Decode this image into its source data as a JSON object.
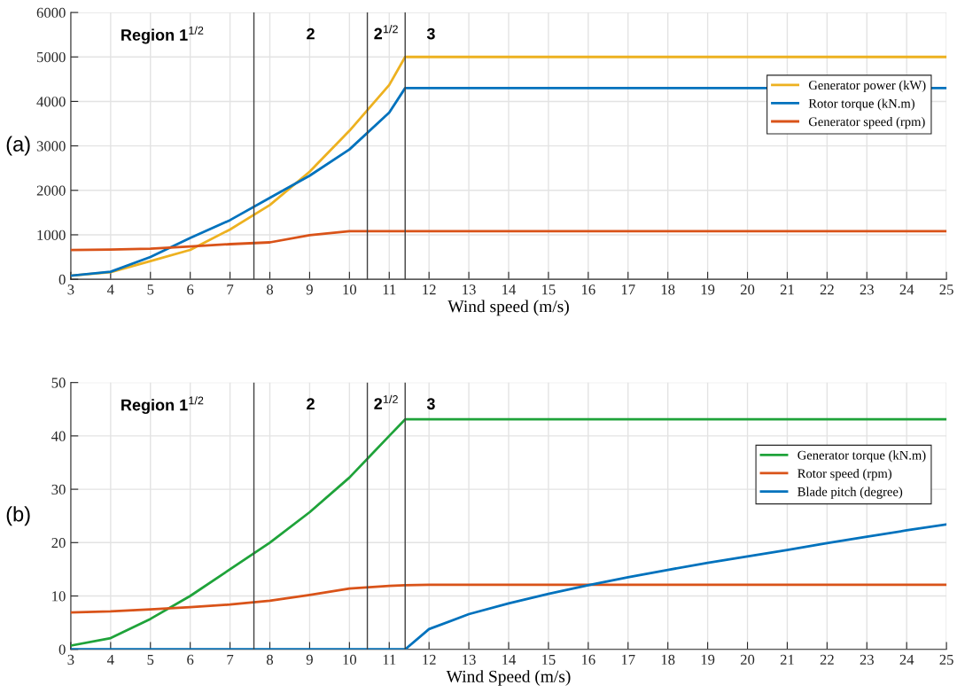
{
  "chart_data": [
    {
      "type": "line",
      "xlabel": "Wind speed (m/s)",
      "xlim": [
        3,
        25
      ],
      "xticks": [
        3,
        4,
        5,
        6,
        7,
        8,
        9,
        10,
        11,
        12,
        13,
        14,
        15,
        16,
        17,
        18,
        19,
        20,
        21,
        22,
        23,
        24,
        25
      ],
      "ylim": [
        0,
        6000
      ],
      "yticks": [
        0,
        1000,
        2000,
        3000,
        4000,
        5000,
        6000
      ],
      "grid": true,
      "legend": "right",
      "line_style": "solid",
      "series": [
        {
          "name": "Generator power (kW)",
          "color": "#edb120",
          "x": [
            3,
            4,
            5,
            6,
            7,
            8,
            9,
            10,
            11,
            11.4,
            25
          ],
          "values": [
            80,
            160,
            410,
            660,
            1120,
            1670,
            2420,
            3340,
            4370,
            5000,
            5000
          ]
        },
        {
          "name": "Rotor torque (kN.m)",
          "color": "#0072bd",
          "x": [
            3,
            4,
            5,
            6,
            7,
            8,
            9,
            10,
            11,
            11.4,
            25
          ],
          "values": [
            80,
            170,
            500,
            930,
            1330,
            1830,
            2330,
            2920,
            3750,
            4300,
            4300
          ]
        },
        {
          "name": "Generator speed (rpm)",
          "color": "#d95319",
          "x": [
            3,
            4,
            5,
            6,
            7,
            8,
            9,
            10,
            11,
            11.4,
            25
          ],
          "values": [
            660,
            670,
            690,
            740,
            790,
            830,
            990,
            1080,
            1080,
            1080,
            1080
          ]
        }
      ],
      "ref_lines": [
        {
          "axis": "x",
          "value": 7.6,
          "color": "#404040"
        },
        {
          "axis": "x",
          "value": 10.45,
          "color": "#404040"
        },
        {
          "axis": "x",
          "value": 11.4,
          "color": "#404040"
        }
      ],
      "annotations": [
        "(a)",
        "Region 1$^{1/2}$",
        "2",
        "2$^{1/2}$",
        "3"
      ]
    },
    {
      "type": "line",
      "xlabel": "Wind Speed (m/s)",
      "xlim": [
        3,
        25
      ],
      "xticks": [
        3,
        4,
        5,
        6,
        7,
        8,
        9,
        10,
        11,
        12,
        13,
        14,
        15,
        16,
        17,
        18,
        19,
        20,
        21,
        22,
        23,
        24,
        25
      ],
      "ylim": [
        0,
        50
      ],
      "yticks": [
        0,
        10,
        20,
        30,
        40,
        50
      ],
      "grid": true,
      "legend": "right",
      "line_style": "solid",
      "series": [
        {
          "name": "Generator torque (kN.m)",
          "color": "#1fa33a",
          "x": [
            3,
            4,
            5,
            6,
            7,
            8,
            9,
            10,
            11,
            11.4,
            25
          ],
          "values": [
            0.7,
            2.1,
            5.7,
            10,
            15,
            20,
            25.7,
            32.2,
            40,
            43.1,
            43.1
          ]
        },
        {
          "name": "Rotor speed (rpm)",
          "color": "#d95319",
          "x": [
            3,
            4,
            5,
            6,
            7,
            8,
            9,
            10,
            11,
            11.4,
            12,
            25
          ],
          "values": [
            6.9,
            7.1,
            7.5,
            7.9,
            8.4,
            9.1,
            10.2,
            11.4,
            11.9,
            12,
            12.1,
            12.1
          ]
        },
        {
          "name": "Blade pitch (degree)",
          "color": "#0072bd",
          "x": [
            3,
            11.4,
            12,
            13,
            14,
            15,
            16,
            17,
            18,
            19,
            20,
            21,
            22,
            23,
            24,
            25
          ],
          "values": [
            0,
            0,
            3.8,
            6.6,
            8.6,
            10.4,
            12,
            13.5,
            14.9,
            16.2,
            17.4,
            18.6,
            19.9,
            21.1,
            22.3,
            23.4
          ]
        }
      ],
      "ref_lines": [
        {
          "axis": "x",
          "value": 7.6,
          "color": "#404040"
        },
        {
          "axis": "x",
          "value": 10.45,
          "color": "#404040"
        },
        {
          "axis": "x",
          "value": 11.4,
          "color": "#404040"
        }
      ],
      "annotations": [
        "(b)",
        "Region 1$^{1/2}$",
        "2",
        "2$^{1/2}$",
        "3"
      ]
    }
  ]
}
